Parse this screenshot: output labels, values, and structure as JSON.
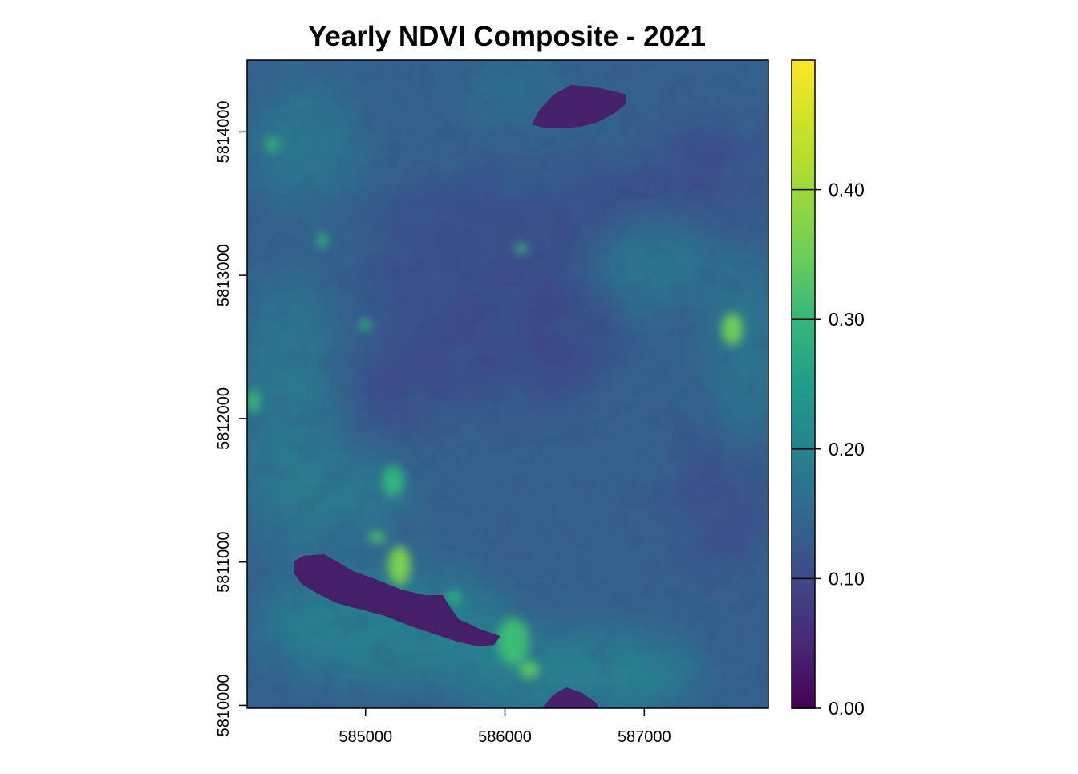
{
  "title": "Yearly NDVI Composite - 2021",
  "colors": {
    "lowest": "#440154",
    "low": "#3b528b",
    "mid": "#21918c",
    "high": "#5ec962",
    "highest": "#fde725",
    "background": "#ffffff"
  },
  "map": {
    "x_axis": {
      "range": [
        584150,
        587890
      ],
      "ticks": [
        {
          "value": 585000,
          "label": "585000"
        },
        {
          "value": 586000,
          "label": "586000"
        },
        {
          "value": 587000,
          "label": "587000"
        }
      ]
    },
    "y_axis": {
      "range": [
        5809980,
        5814500
      ],
      "ticks": [
        {
          "value": 5810000,
          "label": "5810000"
        },
        {
          "value": 5811000,
          "label": "5811000"
        },
        {
          "value": 5812000,
          "label": "5812000"
        },
        {
          "value": 5813000,
          "label": "5813000"
        },
        {
          "value": 5814000,
          "label": "5814000"
        }
      ]
    },
    "raster_value_range": [
      0.0,
      0.5
    ],
    "dominant_ndvi": 0.17,
    "low_ndvi_features": [
      {
        "name": "north water body",
        "ndvi": 0.05
      },
      {
        "name": "southwest water body",
        "ndvi": 0.04
      },
      {
        "name": "south edge water body",
        "ndvi": 0.05
      }
    ],
    "high_ndvi_features": [
      {
        "name": "east bright patch",
        "ndvi": 0.38
      },
      {
        "name": "south-central bright patch",
        "ndvi": 0.4
      }
    ]
  },
  "legend": {
    "type": "continuous colorbar",
    "position": "right",
    "range": [
      0.0,
      0.5
    ],
    "ticks": [
      {
        "value": 0.0,
        "label": "0.00"
      },
      {
        "value": 0.1,
        "label": "0.10"
      },
      {
        "value": 0.2,
        "label": "0.20"
      },
      {
        "value": 0.3,
        "label": "0.30"
      },
      {
        "value": 0.4,
        "label": "0.40"
      }
    ]
  }
}
